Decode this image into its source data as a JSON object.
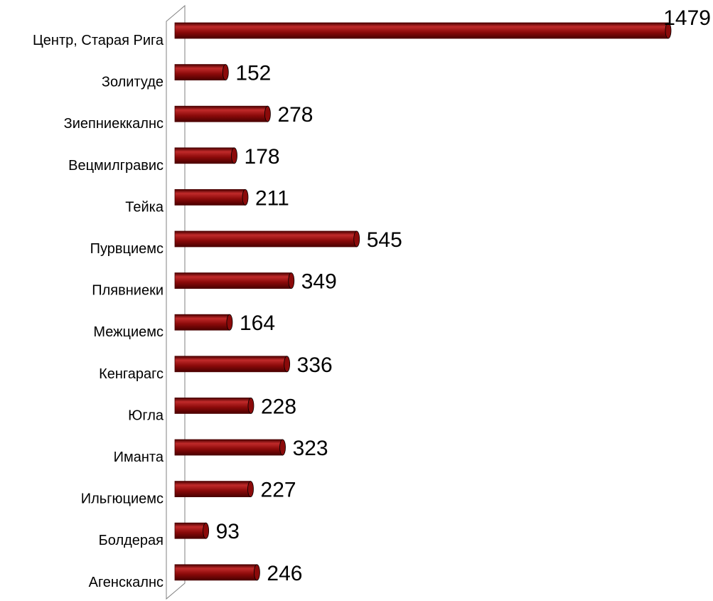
{
  "chart_data": {
    "type": "bar",
    "orientation": "horizontal",
    "style": "3d-cylinder",
    "categories": [
      "Центр, Старая Рига",
      "Золитуде",
      "Зиепниеккалнс",
      "Вецмилгравис",
      "Тейка",
      "Пурвциемс",
      "Плявниеки",
      "Межциемс",
      "Кенгарагс",
      "Югла",
      "Иманта",
      "Ильгюциемс",
      "Болдерая",
      "Агенскалнс"
    ],
    "values": [
      1479,
      152,
      278,
      178,
      211,
      545,
      349,
      164,
      336,
      228,
      323,
      227,
      93,
      246
    ],
    "value_labels": [
      "1479",
      "152",
      "278",
      "178",
      "211",
      "545",
      "349",
      "164",
      "336",
      "228",
      "323",
      "227",
      "93",
      "246"
    ],
    "xlim": [
      0,
      1479
    ],
    "grid": false,
    "legend": "none",
    "colors": {
      "bar": "#8b0a0a",
      "bar_highlight": "#c02a2a",
      "bar_shadow": "#4a0000",
      "wall": "#ffffff",
      "wall_edge": "#808080"
    }
  }
}
